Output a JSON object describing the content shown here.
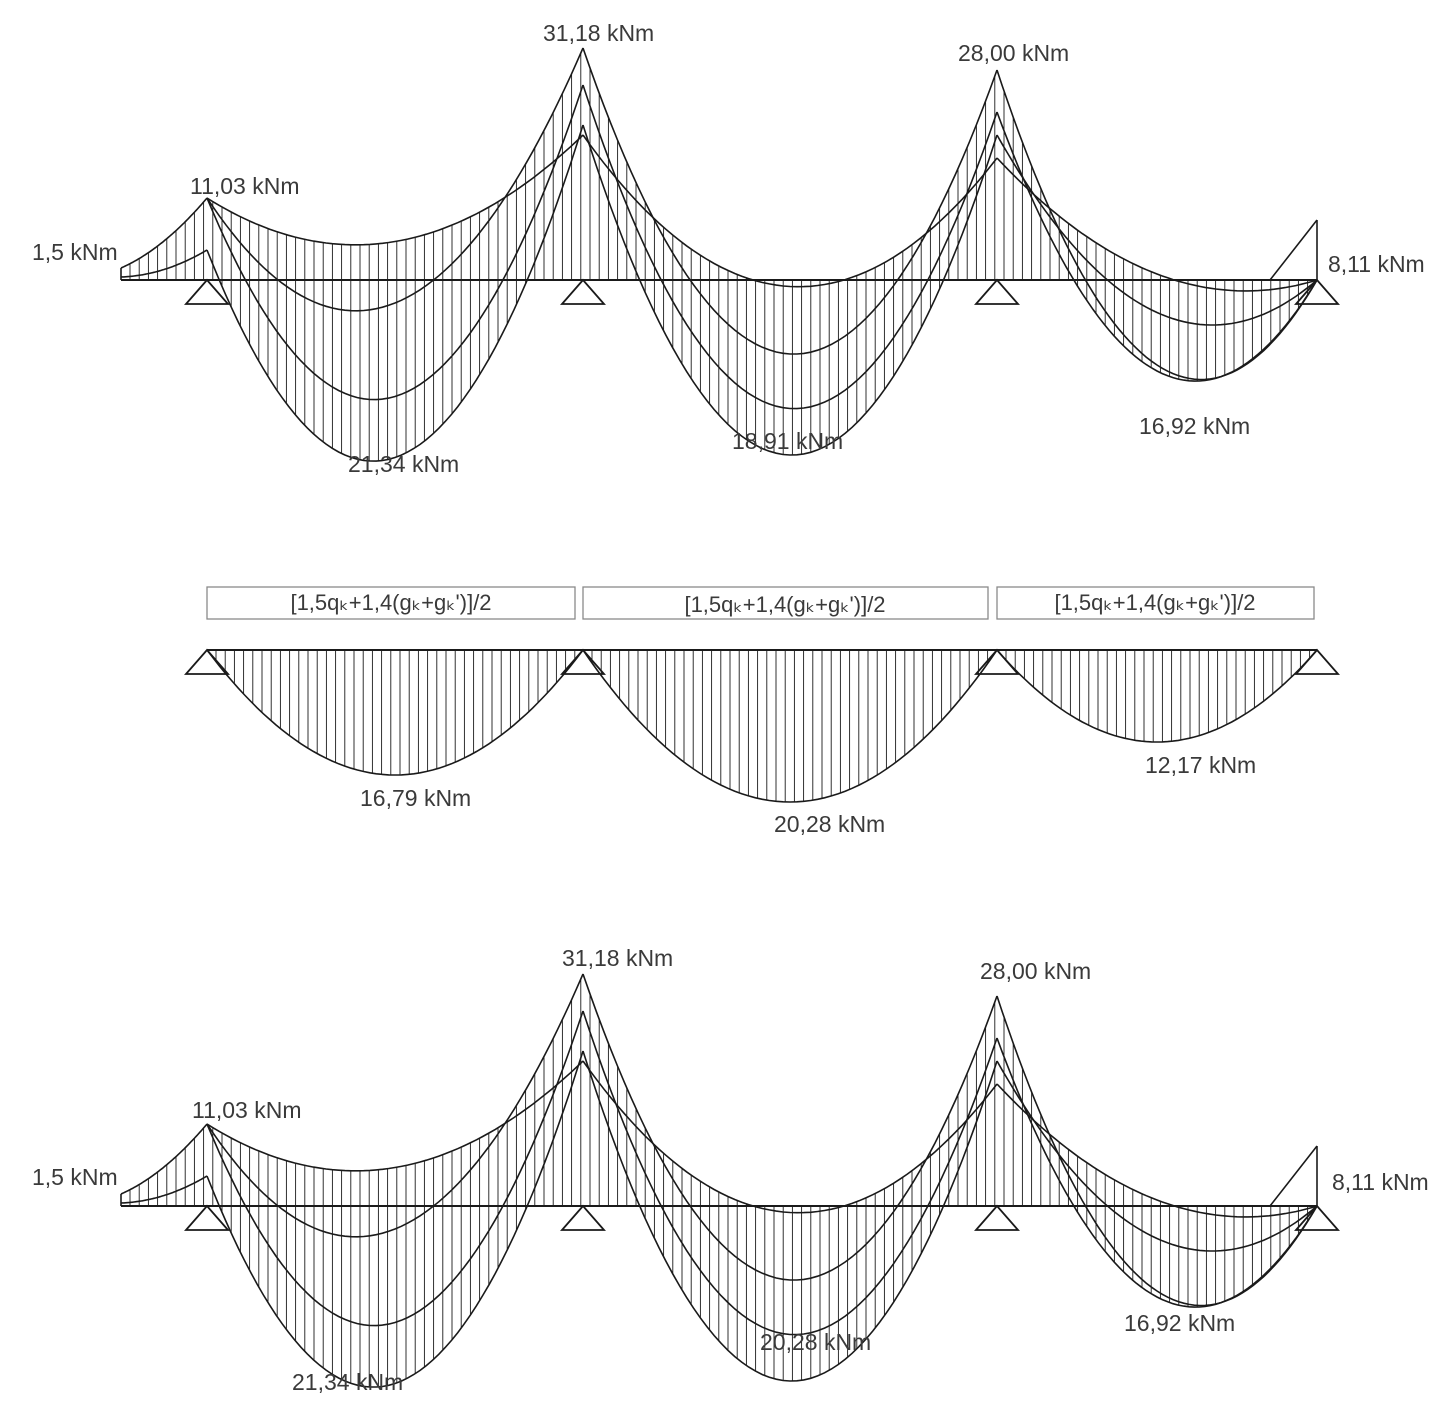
{
  "colors": {
    "line": "#1a1a1a",
    "text": "#3a3a3a",
    "box": "#8a8a8a",
    "background": "#ffffff"
  },
  "top_diagram": {
    "labels": {
      "left_cantilever": "1,5 kNm",
      "support_1": "11,03 kNm",
      "support_2": "31,18 kNm",
      "support_3": "28,00 kNm",
      "right_cantilever": "8,11 kNm",
      "span_1": "21,34 kNm",
      "span_2": "18,91 kNm",
      "span_3": "16,92 kNm"
    }
  },
  "middle_diagram": {
    "loads": [
      {
        "text": "[1,5qₖ+1,4(gₖ+gₖ')]/2"
      },
      {
        "text": "[1,5qₖ+1,4(gₖ+gₖ')]/2"
      },
      {
        "text": "[1,5qₖ+1,4(gₖ+gₖ')]/2"
      }
    ],
    "labels": {
      "span_1": "16,79 kNm",
      "span_2": "20,28 kNm",
      "span_3": "12,17 kNm"
    }
  },
  "bottom_diagram": {
    "labels": {
      "left_cantilever": "1,5 kNm",
      "support_1": "11,03 kNm",
      "support_2": "31,18 kNm",
      "support_3": "28,00 kNm",
      "right_cantilever": "8,11 kNm",
      "span_1": "21,34 kNm",
      "span_2": "20,28 kNm",
      "span_3": "16,92 kNm"
    }
  }
}
